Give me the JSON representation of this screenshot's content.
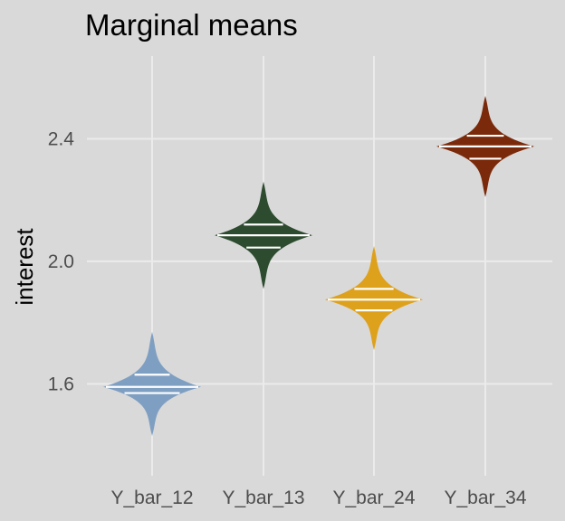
{
  "chart_data": {
    "type": "violin",
    "title": "Marginal means",
    "xlabel": "",
    "ylabel": "interest",
    "ylim": [
      1.3,
      2.67
    ],
    "yticks": [
      1.6,
      2.0,
      2.4
    ],
    "ytick_labels": [
      "1.6",
      "2.0",
      "2.4"
    ],
    "grid": true,
    "legend": "none",
    "categories": [
      "Y_bar_12",
      "Y_bar_13",
      "Y_bar_24",
      "Y_bar_34"
    ],
    "series": [
      {
        "color": "#7f9fc2",
        "mean": 1.59,
        "lower": 1.57,
        "upper": 1.63,
        "min": 1.43,
        "max": 1.77
      },
      {
        "color": "#2d4b2e",
        "mean": 2.085,
        "lower": 2.045,
        "upper": 2.12,
        "min": 1.91,
        "max": 2.26
      },
      {
        "color": "#dea11c",
        "mean": 1.875,
        "lower": 1.84,
        "upper": 1.91,
        "min": 1.71,
        "max": 2.05
      },
      {
        "color": "#7a2a0a",
        "mean": 2.375,
        "lower": 2.335,
        "upper": 2.41,
        "min": 2.21,
        "max": 2.54
      }
    ]
  }
}
